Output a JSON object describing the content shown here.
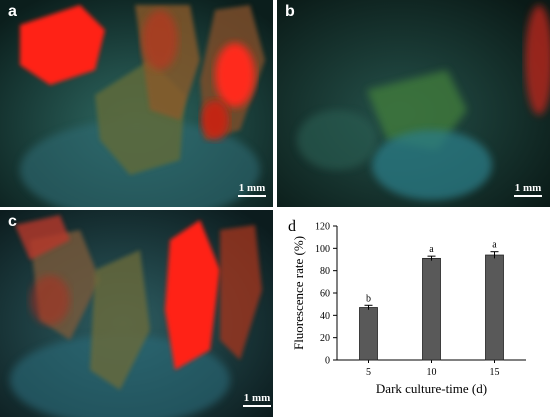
{
  "panels": {
    "a": {
      "label": "a",
      "scale_bar": "1 mm"
    },
    "b": {
      "label": "b",
      "scale_bar": "1 mm"
    },
    "c": {
      "label": "c",
      "scale_bar": "1 mm"
    }
  },
  "chart_label": "d",
  "colors": {
    "bar": "#595959",
    "text": "#000000"
  },
  "chart_data": {
    "type": "bar",
    "categories": [
      "5",
      "10",
      "15"
    ],
    "values": [
      47,
      91,
      94
    ],
    "errors": [
      2,
      2,
      3
    ],
    "significance": [
      "b",
      "a",
      "a"
    ],
    "title": "",
    "xlabel": "Dark culture-time (d)",
    "ylabel": "Fluorescence rate (%)",
    "ylim": [
      0,
      120
    ],
    "yticks": [
      0,
      20,
      40,
      60,
      80,
      100,
      120
    ],
    "grid": false
  }
}
